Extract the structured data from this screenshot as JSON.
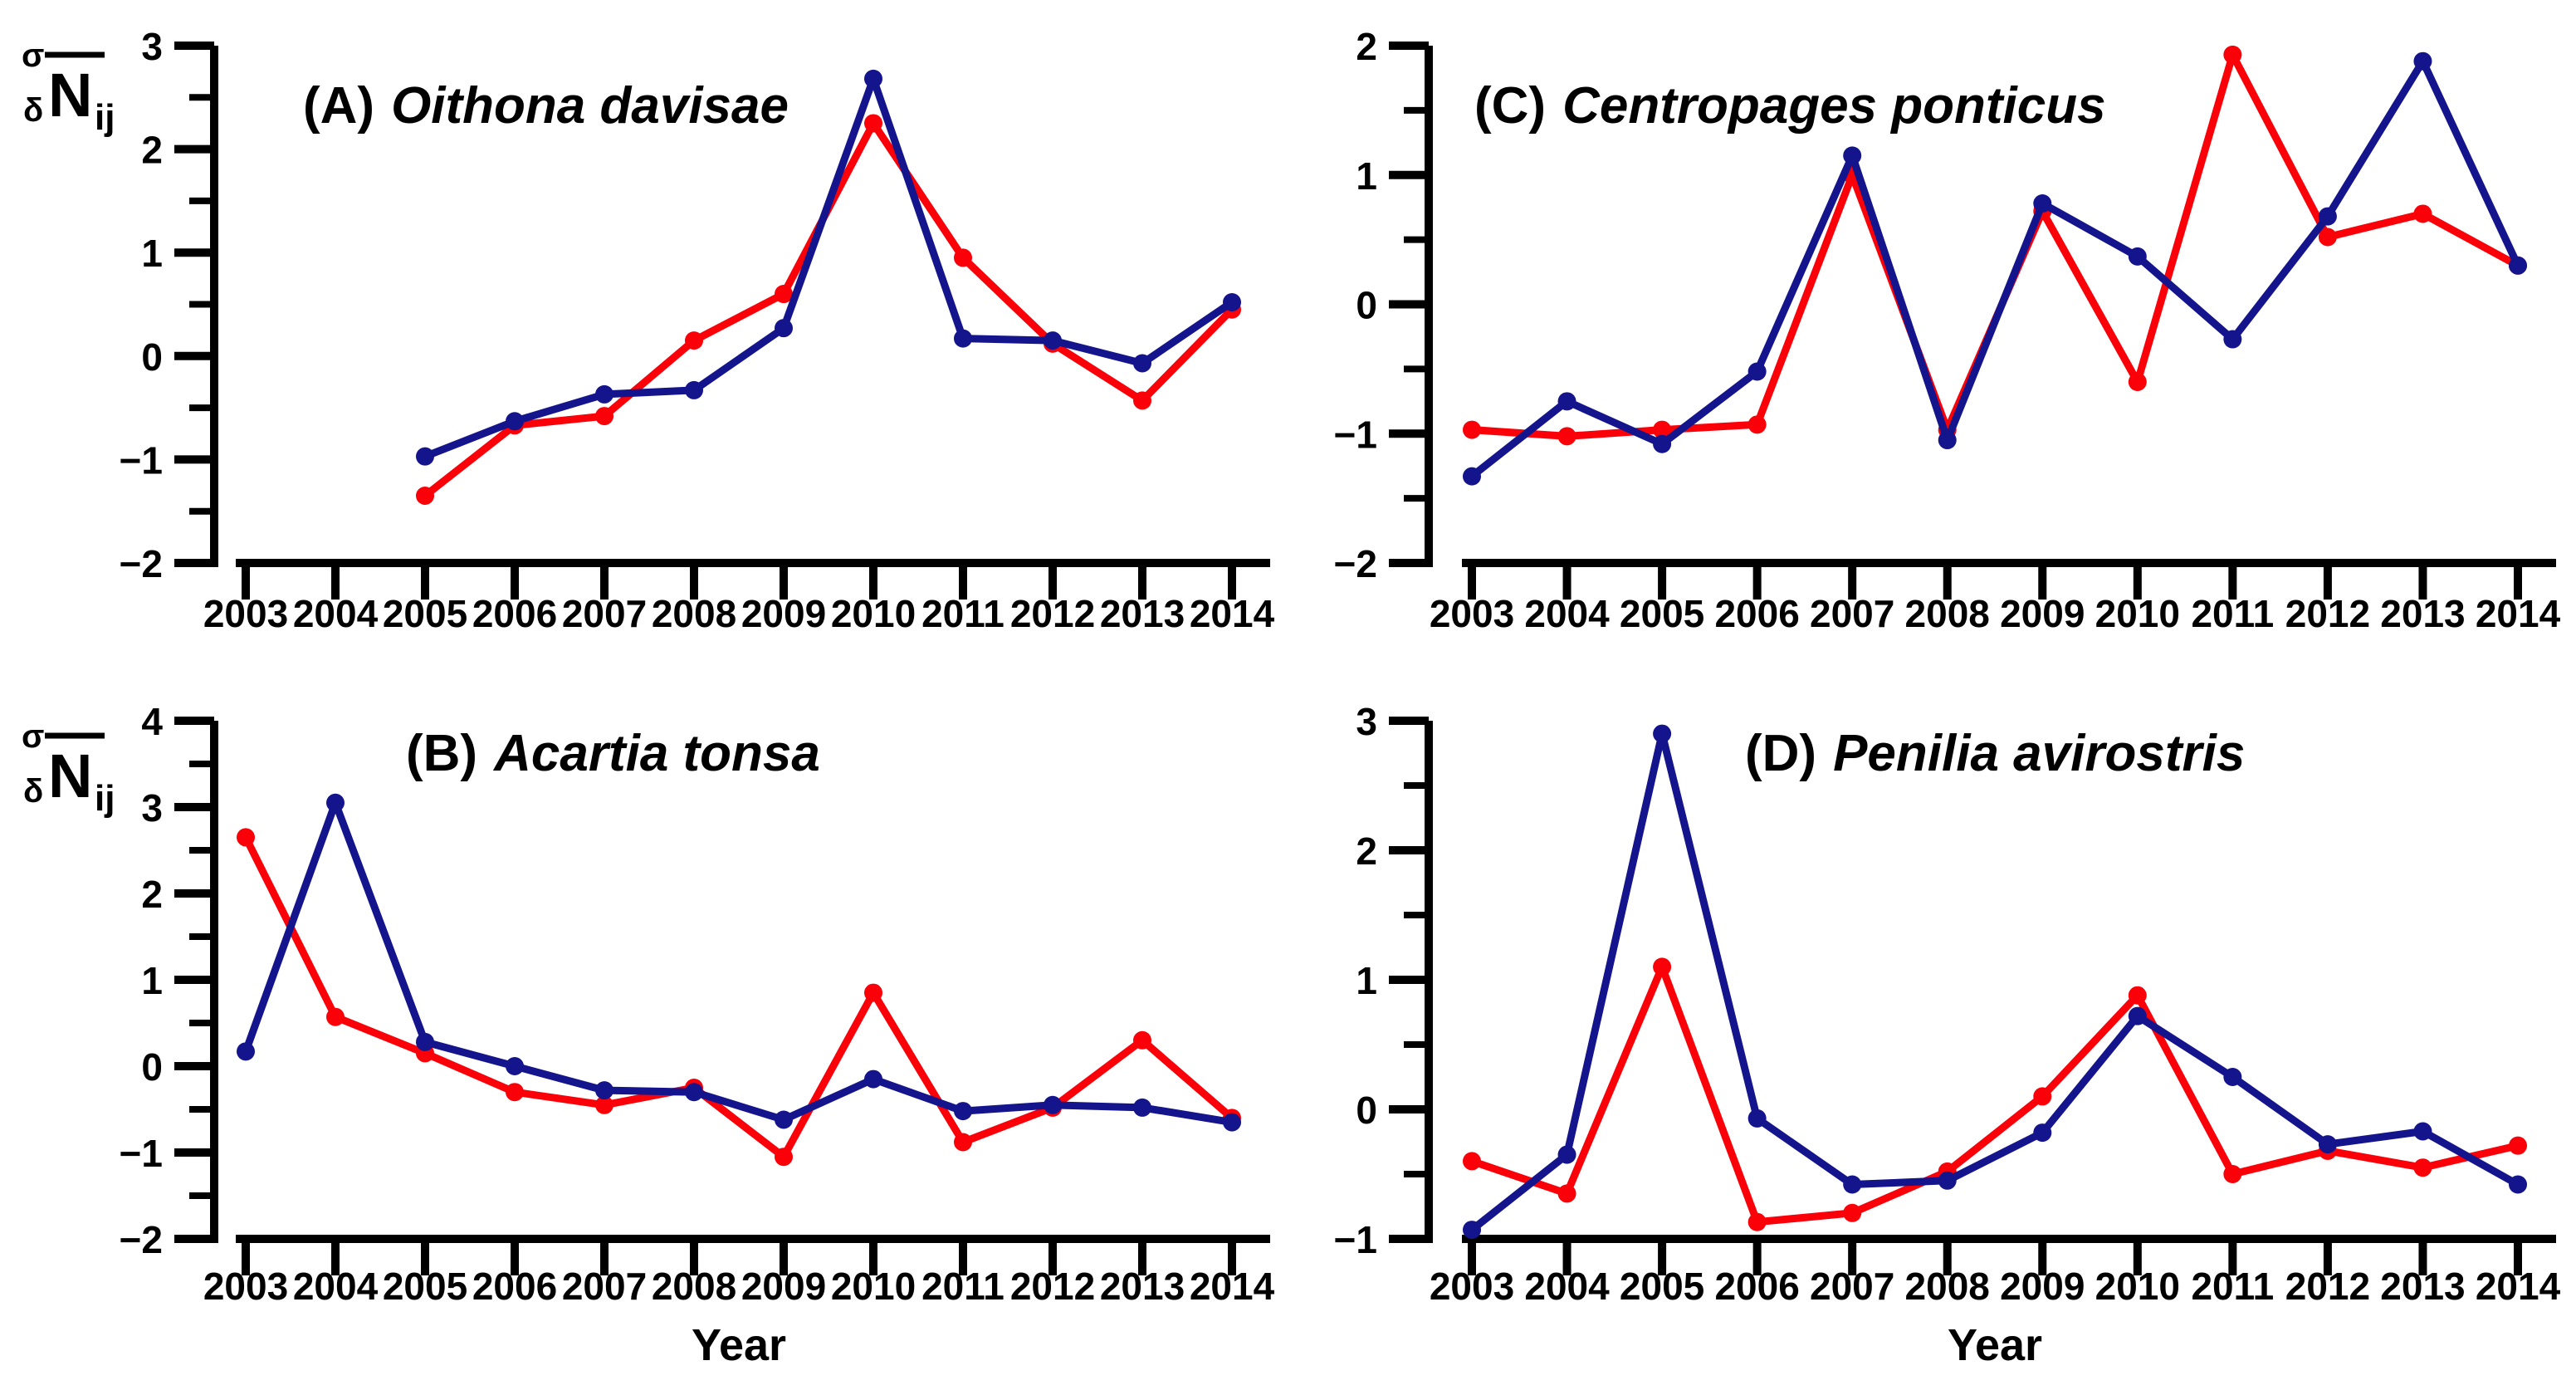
{
  "figure": {
    "xlabel": "Year",
    "ylabel": {
      "pre_top": "σ",
      "pre_bottom": "δ",
      "base": "N",
      "subscript": "ij"
    },
    "colors": {
      "red": "#fa0008",
      "blue": "#14148c",
      "axis": "#000000",
      "background": "#ffffff"
    }
  },
  "chart_data": [
    {
      "type": "line",
      "panel_label": "(A)",
      "species": "Oithona davisae",
      "x": [
        2003,
        2004,
        2005,
        2006,
        2007,
        2008,
        2009,
        2010,
        2011,
        2012,
        2013,
        2014
      ],
      "xlabel": "Year",
      "ylim": [
        -2,
        3
      ],
      "ytick_step": 1,
      "yminor_step": 0.5,
      "grid": false,
      "legend": "none",
      "show_ylabel": true,
      "show_xlabel": false,
      "title_x": 365,
      "series": [
        {
          "name": "red",
          "color": "#fa0008",
          "values": [
            null,
            null,
            -1.35,
            -0.67,
            -0.58,
            0.15,
            0.6,
            2.25,
            0.95,
            0.12,
            -0.43,
            0.45
          ]
        },
        {
          "name": "blue",
          "color": "#14148c",
          "values": [
            null,
            null,
            -0.97,
            -0.63,
            -0.37,
            -0.33,
            0.27,
            2.68,
            0.17,
            0.15,
            -0.07,
            0.52
          ]
        }
      ]
    },
    {
      "type": "line",
      "panel_label": "(C)",
      "species": "Centropages ponticus",
      "x": [
        2003,
        2004,
        2005,
        2006,
        2007,
        2008,
        2009,
        2010,
        2011,
        2012,
        2013,
        2014
      ],
      "xlabel": "Year",
      "ylim": [
        -2,
        2
      ],
      "ytick_step": 1,
      "yminor_step": 0.5,
      "grid": false,
      "legend": "none",
      "show_ylabel": false,
      "show_xlabel": false,
      "title_x": 225,
      "series": [
        {
          "name": "red",
          "color": "#fa0008",
          "values": [
            -0.97,
            -1.02,
            -0.97,
            -0.93,
            1.0,
            -0.97,
            0.72,
            -0.6,
            1.93,
            0.52,
            0.7,
            0.3
          ]
        },
        {
          "name": "blue",
          "color": "#14148c",
          "values": [
            -1.33,
            -0.75,
            -1.08,
            -0.52,
            1.15,
            -1.05,
            0.78,
            0.37,
            -0.27,
            0.68,
            1.88,
            0.3
          ]
        }
      ]
    },
    {
      "type": "line",
      "panel_label": "(B)",
      "species": "Acartia tonsa",
      "x": [
        2003,
        2004,
        2005,
        2006,
        2007,
        2008,
        2009,
        2010,
        2011,
        2012,
        2013,
        2014
      ],
      "xlabel": "Year",
      "ylim": [
        -2,
        4
      ],
      "ytick_step": 1,
      "yminor_step": 0.5,
      "grid": false,
      "legend": "none",
      "show_ylabel": true,
      "show_xlabel": true,
      "title_x": 489,
      "series": [
        {
          "name": "red",
          "color": "#fa0008",
          "values": [
            2.65,
            0.57,
            0.15,
            -0.3,
            -0.45,
            -0.25,
            -1.05,
            0.85,
            -0.88,
            -0.48,
            0.3,
            -0.6
          ]
        },
        {
          "name": "blue",
          "color": "#14148c",
          "values": [
            0.17,
            3.05,
            0.28,
            0.0,
            -0.28,
            -0.3,
            -0.62,
            -0.15,
            -0.52,
            -0.45,
            -0.48,
            -0.65
          ]
        }
      ]
    },
    {
      "type": "line",
      "panel_label": "(D)",
      "species": "Penilia avirostris",
      "x": [
        2003,
        2004,
        2005,
        2006,
        2007,
        2008,
        2009,
        2010,
        2011,
        2012,
        2013,
        2014
      ],
      "xlabel": "Year",
      "ylim": [
        -1,
        3
      ],
      "ytick_step": 1,
      "yminor_step": 0.5,
      "grid": false,
      "legend": "none",
      "show_ylabel": false,
      "show_xlabel": true,
      "title_x": 551,
      "series": [
        {
          "name": "red",
          "color": "#fa0008",
          "values": [
            -0.4,
            -0.65,
            1.1,
            -0.87,
            -0.8,
            -0.48,
            0.1,
            0.88,
            -0.5,
            -0.32,
            -0.45,
            -0.28
          ]
        },
        {
          "name": "blue",
          "color": "#14148c",
          "values": [
            -0.93,
            -0.35,
            2.9,
            -0.07,
            -0.58,
            -0.55,
            -0.18,
            0.72,
            0.25,
            -0.27,
            -0.17,
            -0.58
          ]
        }
      ]
    }
  ]
}
